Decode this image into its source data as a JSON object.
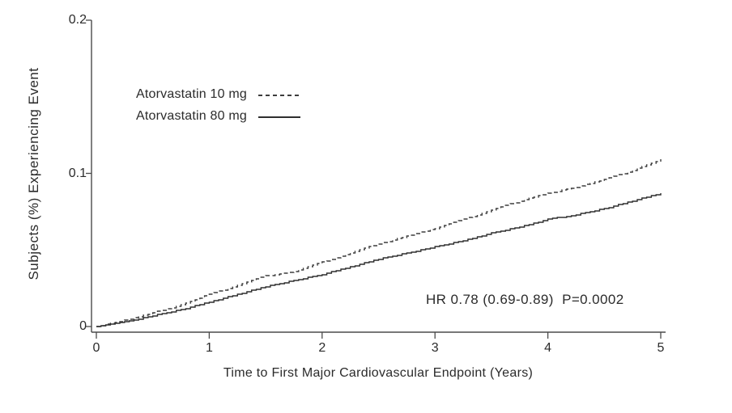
{
  "figure": {
    "background": "#ffffff",
    "text_color": "#2b2b2b",
    "axis_color": "#4a4a4a"
  },
  "chart_data": {
    "type": "line",
    "title": "",
    "xlabel": "Time to First Major Cardiovascular Endpoint (Years)",
    "ylabel": "Subjects (%) Experiencing Event",
    "xlim": [
      0,
      5
    ],
    "ylim": [
      0,
      0.2
    ],
    "x_ticks": [
      0,
      1,
      2,
      3,
      4,
      5
    ],
    "x_tick_labels": [
      "0",
      "1",
      "2",
      "3",
      "4",
      "5"
    ],
    "y_ticks": [
      0,
      0.1,
      0.2
    ],
    "y_tick_labels": [
      "0",
      "0.1",
      "0.2"
    ],
    "grid": false,
    "legend_position": "upper-left-inside",
    "annotation": "HR 0.78 (0.69-0.89)  P=0.0002",
    "x": [
      0,
      0.25,
      0.5,
      0.75,
      1.0,
      1.25,
      1.5,
      1.75,
      2.0,
      2.25,
      2.5,
      2.75,
      3.0,
      3.25,
      3.5,
      3.75,
      4.0,
      4.25,
      4.5,
      4.75,
      5.0
    ],
    "series": [
      {
        "name": "Atorvastatin 10 mg",
        "line_style": "dashed",
        "color": "#3d3d3d",
        "values": [
          0,
          0.004,
          0.009,
          0.014,
          0.021,
          0.027,
          0.033,
          0.036,
          0.042,
          0.048,
          0.054,
          0.059,
          0.064,
          0.07,
          0.076,
          0.082,
          0.087,
          0.091,
          0.096,
          0.102,
          0.109
        ]
      },
      {
        "name": "Atorvastatin 80 mg",
        "line_style": "solid",
        "color": "#2e2e2e",
        "values": [
          0,
          0.003,
          0.007,
          0.011,
          0.016,
          0.021,
          0.026,
          0.03,
          0.034,
          0.039,
          0.044,
          0.048,
          0.052,
          0.056,
          0.061,
          0.065,
          0.07,
          0.073,
          0.077,
          0.082,
          0.087
        ]
      }
    ]
  }
}
